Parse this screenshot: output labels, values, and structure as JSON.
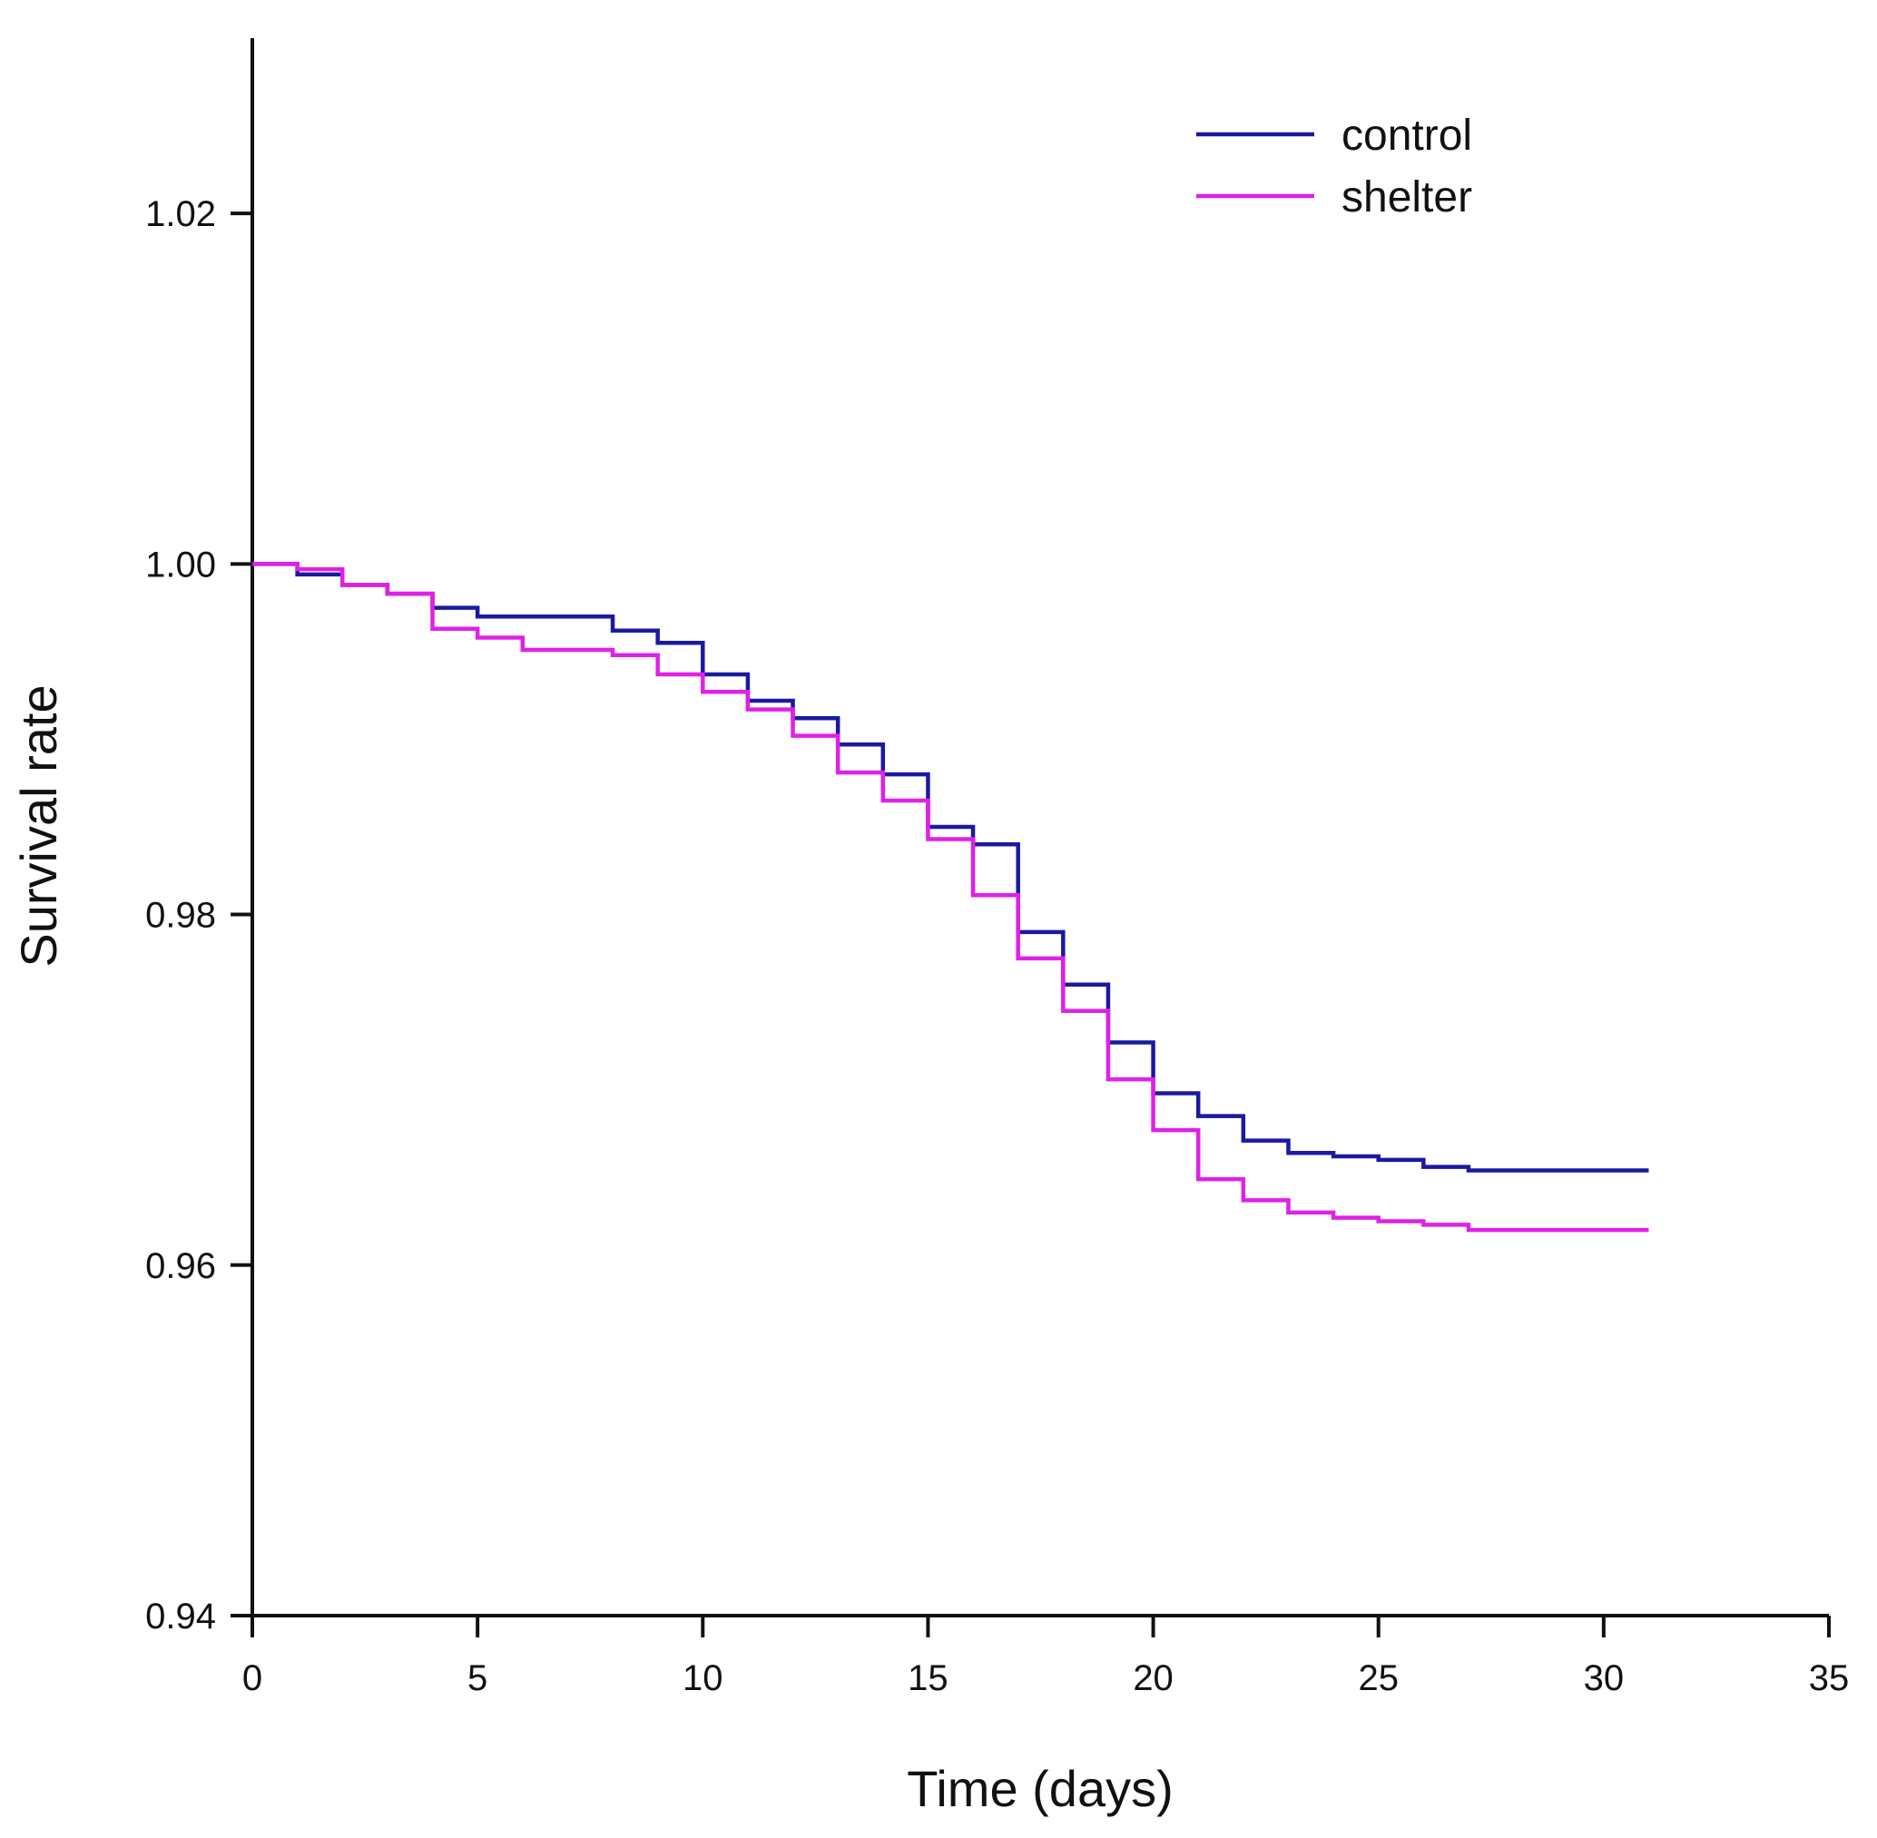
{
  "chart_data": {
    "type": "line",
    "title": "",
    "xlabel": "Time (days)",
    "ylabel": "Survival rate",
    "xlim": [
      0,
      35
    ],
    "ylim": [
      0.94,
      1.03
    ],
    "xticks": [
      0,
      5,
      10,
      15,
      20,
      25,
      30,
      35
    ],
    "xtick_labels": [
      "0",
      "5",
      "10",
      "15",
      "20",
      "25",
      "30",
      "35"
    ],
    "yticks": [
      0.94,
      0.96,
      0.98,
      1.0,
      1.02
    ],
    "ytick_labels": [
      "0.94",
      "0.96",
      "0.98",
      "1.00",
      "1.02"
    ],
    "grid": false,
    "legend_position": "top-right",
    "step": true,
    "series": [
      {
        "name": "control",
        "color": "#1a1aa0",
        "x": [
          0,
          1,
          2,
          3,
          4,
          5,
          6,
          7,
          8,
          9,
          10,
          11,
          12,
          13,
          14,
          15,
          16,
          17,
          18,
          19,
          20,
          21,
          22,
          23,
          24,
          25,
          26,
          27,
          28,
          29,
          30,
          31
        ],
        "values": [
          1.0,
          0.9994,
          0.9988,
          0.9983,
          0.9975,
          0.997,
          0.997,
          0.997,
          0.9962,
          0.9955,
          0.9937,
          0.9922,
          0.9912,
          0.9897,
          0.988,
          0.985,
          0.984,
          0.979,
          0.976,
          0.9727,
          0.9698,
          0.9685,
          0.9671,
          0.9664,
          0.9662,
          0.966,
          0.9656,
          0.9654,
          0.9654,
          0.9654,
          0.9654,
          0.9654
        ]
      },
      {
        "name": "shelter",
        "color": "#e020e8",
        "x": [
          0,
          1,
          2,
          3,
          4,
          5,
          6,
          7,
          8,
          9,
          10,
          11,
          12,
          13,
          14,
          15,
          16,
          17,
          18,
          19,
          20,
          21,
          22,
          23,
          24,
          25,
          26,
          27,
          28,
          29,
          30,
          31
        ],
        "values": [
          1.0,
          0.9997,
          0.9988,
          0.9983,
          0.9963,
          0.9958,
          0.9951,
          0.9951,
          0.9948,
          0.9937,
          0.9927,
          0.9917,
          0.9902,
          0.9881,
          0.9865,
          0.9843,
          0.9811,
          0.9775,
          0.9745,
          0.9706,
          0.9677,
          0.9649,
          0.9637,
          0.963,
          0.9627,
          0.9625,
          0.9623,
          0.962,
          0.962,
          0.962,
          0.962,
          0.962
        ]
      }
    ]
  }
}
